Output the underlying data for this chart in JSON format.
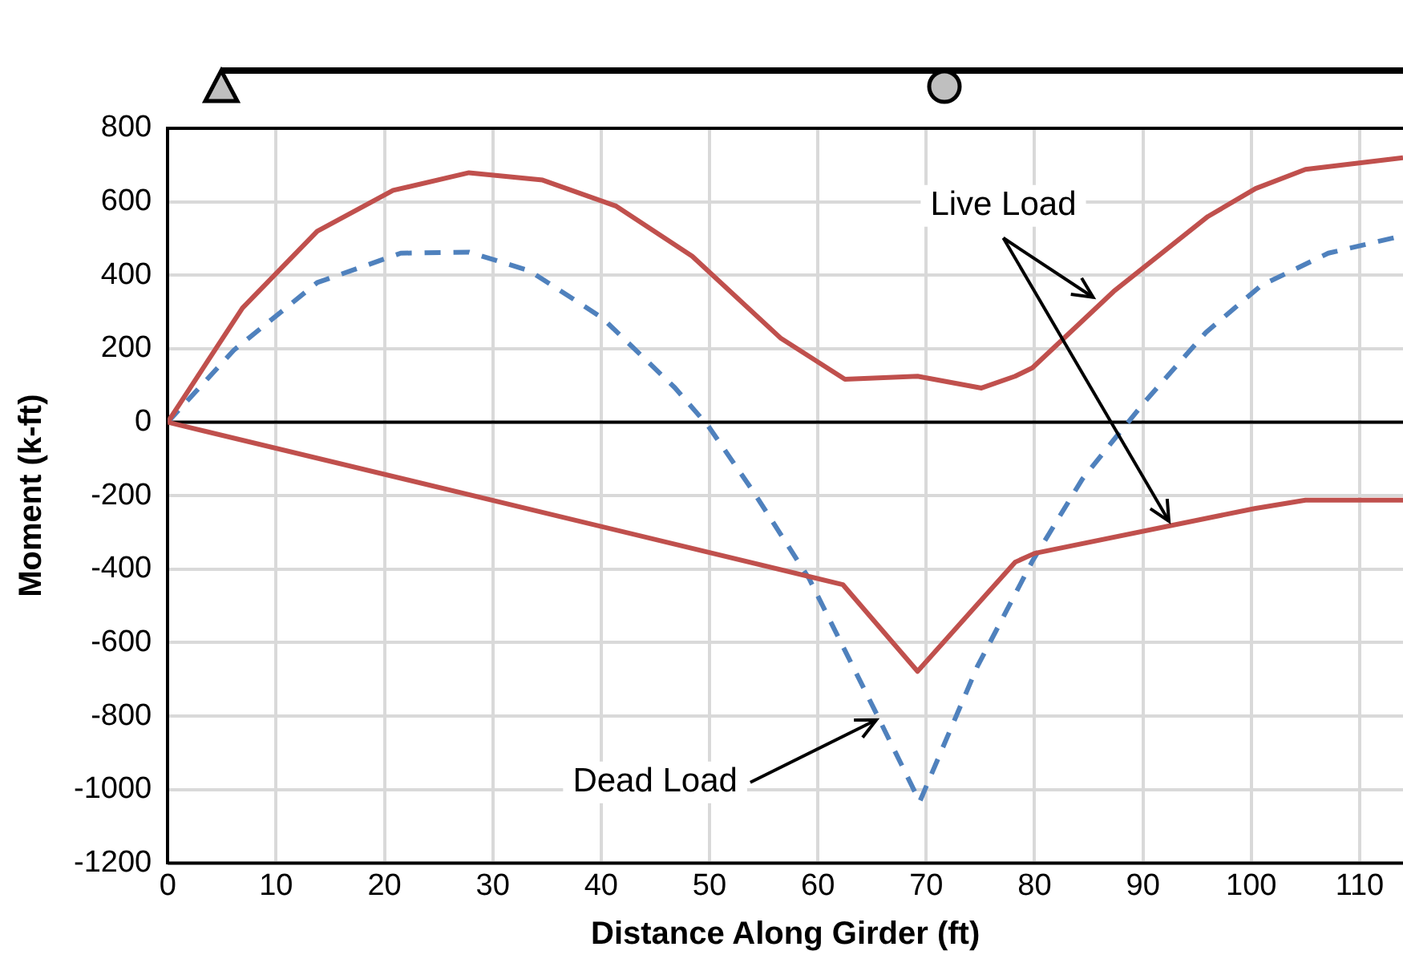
{
  "chart_data": {
    "type": "line",
    "xlabel": "Distance Along Girder (ft)",
    "ylabel": "Moment (k-ft)",
    "xlim": [
      0,
      114
    ],
    "xticks": [
      0,
      10,
      20,
      30,
      40,
      50,
      60,
      70,
      80,
      90,
      100,
      110
    ],
    "ylim": [
      -1200,
      800
    ],
    "yticks": [
      -1200,
      -1000,
      -800,
      -600,
      -400,
      -200,
      0,
      200,
      400,
      600,
      800
    ],
    "grid": true,
    "legend": false,
    "marker": "none",
    "series": [
      {
        "color": "#c0504d",
        "line_style": "solid",
        "x": [
          0,
          6.9,
          13.8,
          20.8,
          27.8,
          34.6,
          41.4,
          48.4,
          56.6,
          62.5,
          69.2,
          75.1,
          78.2,
          79.8,
          87.3,
          96.0,
          100.4,
          105,
          114
        ],
        "values": [
          0,
          311,
          520,
          631,
          679,
          659,
          588,
          452,
          228,
          117,
          125,
          93,
          125,
          148,
          356,
          560,
          636,
          688,
          720
        ]
      },
      {
        "color": "#c0504d",
        "line_style": "solid",
        "x": [
          0,
          62.3,
          69.2,
          78.2,
          80,
          100.3,
          105,
          114
        ],
        "values": [
          0,
          -442,
          -678,
          -381,
          -357,
          -235,
          -212,
          -212
        ]
      },
      {
        "color": "#4f81bd",
        "line_style": "dashed",
        "x": [
          0,
          6.1,
          13.8,
          21.5,
          27.8,
          33.4,
          40.1,
          46.8,
          49.9,
          54.0,
          59.2,
          65.4,
          69.4,
          74.7,
          79.8,
          84.4,
          87,
          90.1,
          95.8,
          100.9,
          107.1,
          114
        ],
        "values": [
          0,
          196,
          380,
          460,
          463,
          412,
          284,
          94,
          -11,
          -187,
          -426,
          -793,
          -1033,
          -666,
          -378,
          -155,
          -59,
          53,
          244,
          372,
          460,
          508
        ]
      }
    ],
    "ref_lines": [
      {
        "axis": "y",
        "value": 0,
        "color": "#000000"
      }
    ],
    "annotations": [
      {
        "text": "Live Load",
        "x": 85.4,
        "y": 340
      },
      {
        "text": "Dead Load",
        "x": 65.4,
        "y": -810
      }
    ]
  }
}
